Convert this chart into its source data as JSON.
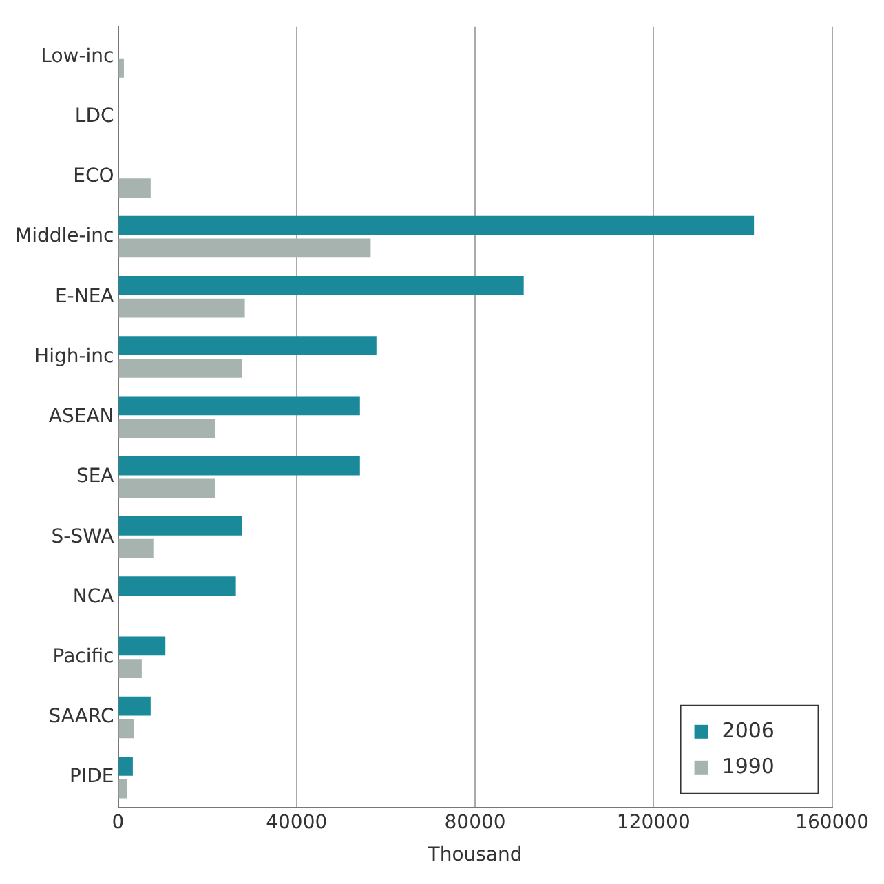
{
  "chart_data": {
    "type": "bar",
    "orientation": "horizontal",
    "xlabel": "Thousand",
    "categories": [
      "Low-inc",
      "LDC",
      "ECO",
      "Middle-inc",
      "E-NEA",
      "High-inc",
      "ASEAN",
      "SEA",
      "S-SWA",
      "NCA",
      "Pacific",
      "SAARC",
      "PIDE"
    ],
    "series": [
      {
        "name": "2006",
        "color": "#1a8a9a",
        "values": [
          null,
          null,
          null,
          142500,
          90900,
          57900,
          54200,
          54200,
          27800,
          26400,
          10600,
          7300,
          3300
        ]
      },
      {
        "name": "1990",
        "color": "#a6b3ae",
        "values": [
          1300,
          null,
          7300,
          56600,
          28400,
          27800,
          21800,
          21800,
          7900,
          null,
          5300,
          3600,
          2000
        ]
      }
    ],
    "xlim": [
      0,
      160000
    ],
    "xticks": [
      0,
      40000,
      80000,
      120000,
      160000
    ],
    "grid": "x",
    "legend": "bottom right"
  }
}
